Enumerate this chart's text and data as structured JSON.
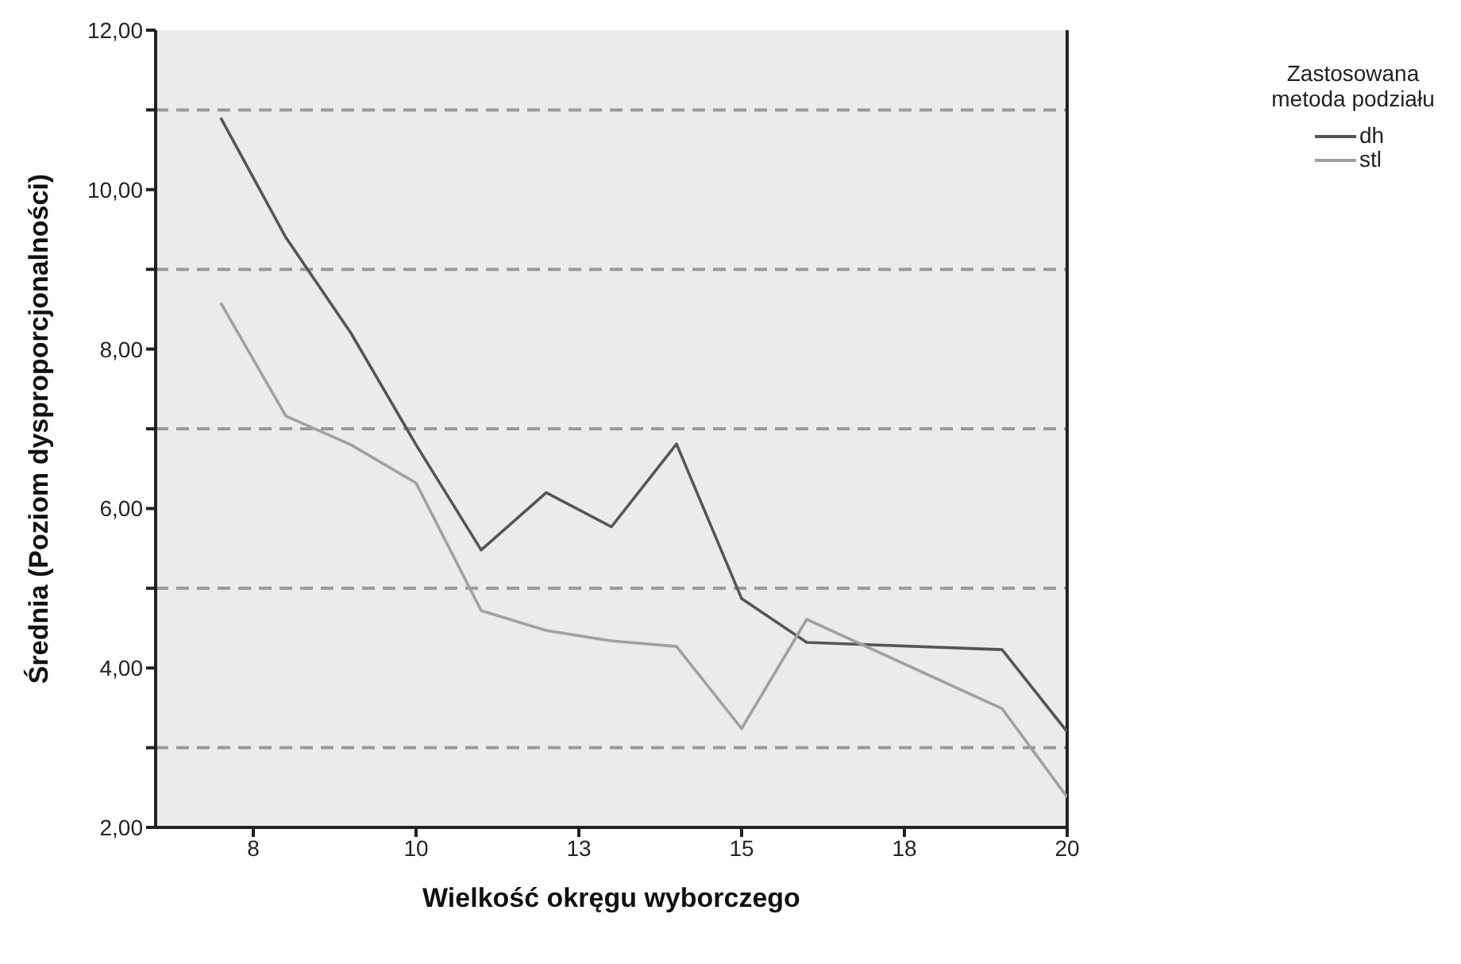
{
  "chart_data": {
    "type": "line",
    "xlabel": "Wielkość okręgu wyborczego",
    "ylabel": "Średnia (Poziom dysproporcjonalności)",
    "legend_title": "Zastosowana metoda podziału",
    "legend": "right",
    "grid": false,
    "marker": "none",
    "line_style": "solid",
    "x": [
      7,
      8,
      9,
      10,
      11,
      12,
      13,
      14,
      15,
      16,
      19,
      20
    ],
    "series": [
      {
        "name": "dh",
        "color": "#555555",
        "values": [
          10.9,
          9.4,
          8.2,
          6.8,
          5.48,
          6.2,
          5.77,
          6.81,
          4.87,
          4.32,
          4.23,
          3.2
        ]
      },
      {
        "name": "stl",
        "color": "#a0a0a0",
        "values": [
          8.58,
          7.16,
          6.8,
          6.32,
          4.72,
          4.47,
          4.34,
          4.27,
          3.24,
          4.61,
          3.49,
          2.38
        ]
      }
    ],
    "xlim": [
      6,
      20
    ],
    "xticks": [
      {
        "value": 7.5,
        "label": "8"
      },
      {
        "value": 10,
        "label": "10"
      },
      {
        "value": 12.5,
        "label": "13"
      },
      {
        "value": 15,
        "label": "15"
      },
      {
        "value": 17.5,
        "label": "18"
      },
      {
        "value": 20,
        "label": "20"
      }
    ],
    "ylim": [
      2,
      12
    ],
    "yticks": [
      {
        "value": 2,
        "label": "2,00"
      },
      {
        "value": 3,
        "label": null
      },
      {
        "value": 4,
        "label": "4,00"
      },
      {
        "value": 5,
        "label": null
      },
      {
        "value": 6,
        "label": "6,00"
      },
      {
        "value": 7,
        "label": null
      },
      {
        "value": 8,
        "label": "8,00"
      },
      {
        "value": 9,
        "label": null
      },
      {
        "value": 10,
        "label": "10,00"
      },
      {
        "value": 11,
        "label": null
      },
      {
        "value": 12,
        "label": "12,00"
      }
    ],
    "ref_lines": [
      {
        "axis": "y",
        "value": 3,
        "color": "#999999",
        "line_style": "dashed"
      },
      {
        "axis": "y",
        "value": 5,
        "color": "#999999",
        "line_style": "dashed"
      },
      {
        "axis": "y",
        "value": 7,
        "color": "#999999",
        "line_style": "dashed"
      },
      {
        "axis": "y",
        "value": 9,
        "color": "#999999",
        "line_style": "dashed"
      },
      {
        "axis": "y",
        "value": 11,
        "color": "#999999",
        "line_style": "dashed"
      }
    ]
  }
}
